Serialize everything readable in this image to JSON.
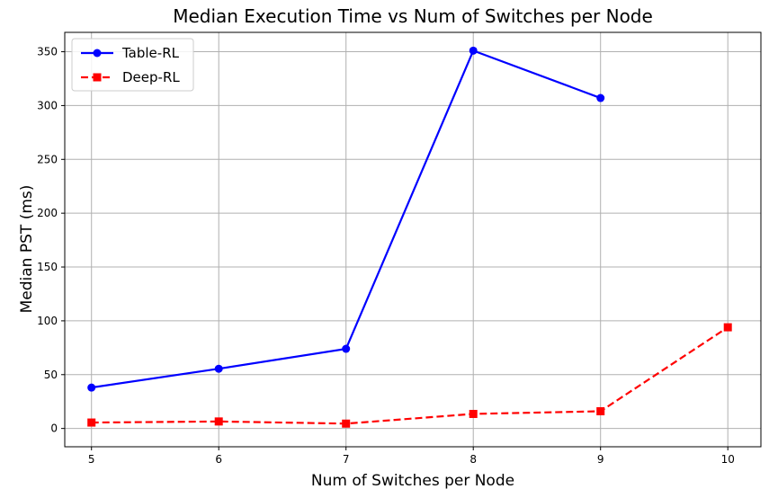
{
  "chart_data": {
    "type": "line",
    "title": "Median Execution Time vs Num of Switches per Node",
    "xlabel": "Num of Switches per Node",
    "ylabel": "Median PST (ms)",
    "xlim": [
      4.79,
      10.26
    ],
    "ylim": [
      -17,
      368
    ],
    "xticks": [
      5,
      6,
      7,
      8,
      9,
      10
    ],
    "yticks": [
      0,
      50,
      100,
      150,
      200,
      250,
      300,
      350
    ],
    "grid": true,
    "legend_position": "top-left",
    "series": [
      {
        "name": "Table-RL",
        "color": "#0000ff",
        "line_style": "solid",
        "marker": "circle",
        "x": [
          5,
          6,
          7,
          8,
          9
        ],
        "y": [
          38,
          55.5,
          74,
          351,
          307
        ]
      },
      {
        "name": "Deep-RL",
        "color": "#ff0000",
        "line_style": "dashed",
        "marker": "square",
        "x": [
          5,
          6,
          7,
          8,
          9,
          10
        ],
        "y": [
          5.5,
          6.5,
          4.5,
          13.5,
          16,
          94
        ]
      }
    ]
  }
}
